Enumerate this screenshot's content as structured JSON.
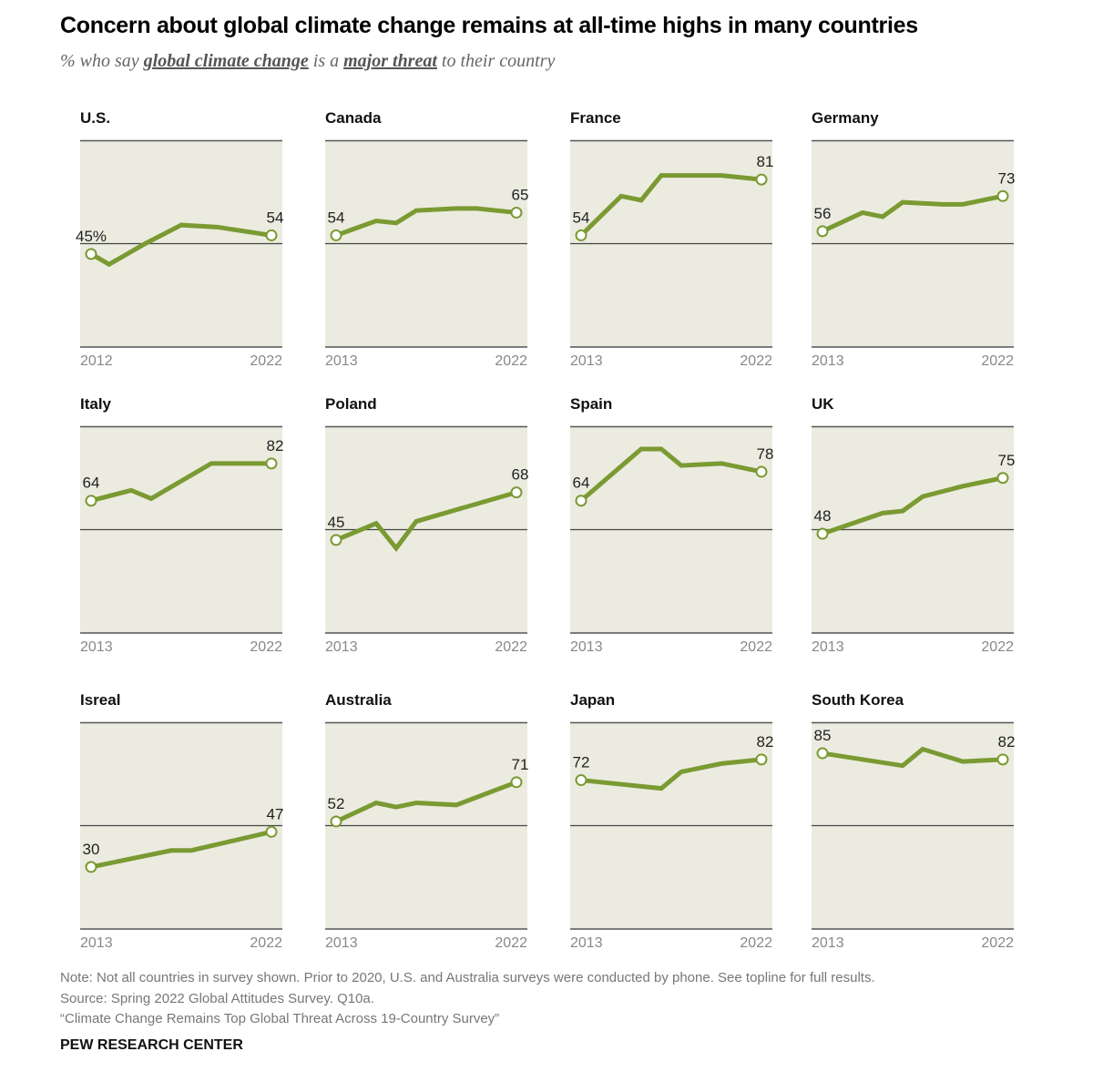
{
  "header": {
    "title": "Concern about global climate change remains at all-time highs in many countries",
    "subtitle_pre": "% who say ",
    "subtitle_em1": "global climate change",
    "subtitle_mid": " is a ",
    "subtitle_em2": "major threat",
    "subtitle_post": " to their country"
  },
  "colors": {
    "line": "#7a9a32",
    "panel_bg": "#ecebe0",
    "rule": "#555555"
  },
  "chart_data": [
    {
      "type": "line",
      "title": "U.S.",
      "x": [
        2012,
        2013,
        2015,
        2017,
        2019,
        2022
      ],
      "values": [
        45,
        40,
        50,
        59,
        58,
        54
      ],
      "start_label": "45%",
      "end_label": "54",
      "xticks": [
        "2012",
        "2022"
      ],
      "ylim": [
        0,
        100
      ],
      "midline": 50
    },
    {
      "type": "line",
      "title": "Canada",
      "x": [
        2013,
        2015,
        2016,
        2017,
        2019,
        2020,
        2022
      ],
      "values": [
        54,
        61,
        60,
        66,
        67,
        67,
        65
      ],
      "start_label": "54",
      "end_label": "65",
      "xticks": [
        "2013",
        "2022"
      ],
      "ylim": [
        0,
        100
      ],
      "midline": 50
    },
    {
      "type": "line",
      "title": "France",
      "x": [
        2013,
        2015,
        2016,
        2017,
        2019,
        2020,
        2022
      ],
      "values": [
        54,
        73,
        71,
        83,
        83,
        83,
        81
      ],
      "start_label": "54",
      "end_label": "81",
      "xticks": [
        "2013",
        "2022"
      ],
      "ylim": [
        0,
        100
      ],
      "midline": 50
    },
    {
      "type": "line",
      "title": "Germany",
      "x": [
        2013,
        2015,
        2016,
        2017,
        2019,
        2020,
        2022
      ],
      "values": [
        56,
        65,
        63,
        70,
        69,
        69,
        73
      ],
      "start_label": "56",
      "end_label": "73",
      "xticks": [
        "2013",
        "2022"
      ],
      "ylim": [
        0,
        100
      ],
      "midline": 50
    },
    {
      "type": "line",
      "title": "Italy",
      "x": [
        2013,
        2015,
        2016,
        2019,
        2020,
        2022
      ],
      "values": [
        64,
        69,
        65,
        82,
        82,
        82
      ],
      "start_label": "64",
      "end_label": "82",
      "xticks": [
        "2013",
        "2022"
      ],
      "ylim": [
        0,
        100
      ],
      "midline": 50
    },
    {
      "type": "line",
      "title": "Poland",
      "x": [
        2013,
        2015,
        2016,
        2017,
        2022
      ],
      "values": [
        45,
        53,
        41,
        54,
        68
      ],
      "start_label": "45",
      "end_label": "68",
      "xticks": [
        "2013",
        "2022"
      ],
      "ylim": [
        0,
        100
      ],
      "midline": 50
    },
    {
      "type": "line",
      "title": "Spain",
      "x": [
        2013,
        2016,
        2017,
        2018,
        2020,
        2022
      ],
      "values": [
        64,
        89,
        89,
        81,
        82,
        78
      ],
      "start_label": "64",
      "end_label": "78",
      "xticks": [
        "2013",
        "2022"
      ],
      "ylim": [
        0,
        100
      ],
      "midline": 50
    },
    {
      "type": "line",
      "title": "UK",
      "x": [
        2013,
        2016,
        2017,
        2018,
        2020,
        2022
      ],
      "values": [
        48,
        58,
        59,
        66,
        71,
        75
      ],
      "start_label": "48",
      "end_label": "75",
      "xticks": [
        "2013",
        "2022"
      ],
      "ylim": [
        0,
        100
      ],
      "midline": 50
    },
    {
      "type": "line",
      "title": "Isreal",
      "x": [
        2013,
        2017,
        2018,
        2022
      ],
      "values": [
        30,
        38,
        38,
        47
      ],
      "start_label": "30",
      "end_label": "47",
      "xticks": [
        "2013",
        "2022"
      ],
      "ylim": [
        0,
        100
      ],
      "midline": 50
    },
    {
      "type": "line",
      "title": "Australia",
      "x": [
        2013,
        2015,
        2016,
        2017,
        2019,
        2022
      ],
      "values": [
        52,
        61,
        59,
        61,
        60,
        71
      ],
      "start_label": "52",
      "end_label": "71",
      "xticks": [
        "2013",
        "2022"
      ],
      "ylim": [
        0,
        100
      ],
      "midline": 50
    },
    {
      "type": "line",
      "title": "Japan",
      "x": [
        2013,
        2017,
        2018,
        2020,
        2022
      ],
      "values": [
        72,
        68,
        76,
        80,
        82
      ],
      "start_label": "72",
      "end_label": "82",
      "xticks": [
        "2013",
        "2022"
      ],
      "ylim": [
        0,
        100
      ],
      "midline": 50
    },
    {
      "type": "line",
      "title": "South Korea",
      "x": [
        2013,
        2017,
        2018,
        2020,
        2022
      ],
      "values": [
        85,
        79,
        87,
        81,
        82
      ],
      "start_label": "85",
      "end_label": "82",
      "xticks": [
        "2013",
        "2022"
      ],
      "ylim": [
        0,
        100
      ],
      "midline": 50
    }
  ],
  "footer": {
    "note": "Note: Not all countries in survey shown. Prior to 2020, U.S. and Australia surveys were conducted by phone. See topline for full results.",
    "source": "Source: Spring 2022 Global Attitudes Survey. Q10a.",
    "report": "“Climate Change Remains Top Global Threat Across 19-Country Survey”",
    "brand": "PEW RESEARCH CENTER"
  }
}
